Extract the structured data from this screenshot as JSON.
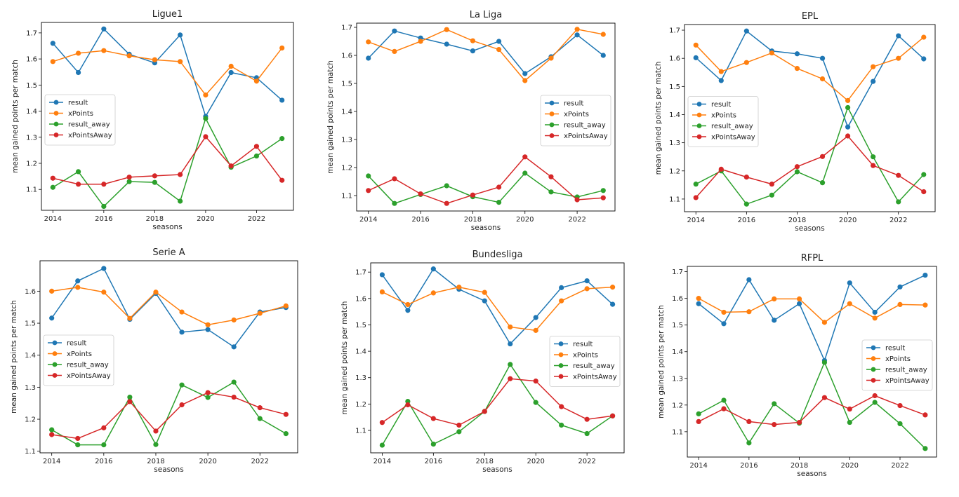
{
  "colors": {
    "result": "#1f77b4",
    "xPoints": "#ff7f0e",
    "result_away": "#2ca02c",
    "xPointsAway": "#d62728"
  },
  "chart_data": [
    {
      "type": "line",
      "title": "Ligue1",
      "xlabel": "seasons",
      "ylabel": "mean gained points per match",
      "x": [
        2014,
        2015,
        2016,
        2017,
        2018,
        2019,
        2020,
        2021,
        2022,
        2023
      ],
      "xticks": [
        2014,
        2016,
        2018,
        2020,
        2022
      ],
      "yticks": [
        1.1,
        1.2,
        1.3,
        1.4,
        1.5,
        1.6,
        1.7
      ],
      "ylim": [
        1.02,
        1.74
      ],
      "legend": "center-left",
      "series": [
        {
          "name": "result",
          "values": [
            1.66,
            1.548,
            1.715,
            1.618,
            1.585,
            1.692,
            1.38,
            1.548,
            1.528,
            1.442
          ]
        },
        {
          "name": "xPoints",
          "values": [
            1.59,
            1.622,
            1.632,
            1.612,
            1.597,
            1.59,
            1.462,
            1.572,
            1.515,
            1.642
          ]
        },
        {
          "name": "result_away",
          "values": [
            1.108,
            1.168,
            1.035,
            1.13,
            1.127,
            1.055,
            1.372,
            1.185,
            1.228,
            1.295
          ]
        },
        {
          "name": "xPointsAway",
          "values": [
            1.143,
            1.12,
            1.12,
            1.147,
            1.152,
            1.157,
            1.302,
            1.19,
            1.265,
            1.135
          ]
        }
      ]
    },
    {
      "type": "line",
      "title": "La Liga",
      "xlabel": "seasons",
      "ylabel": "mean gained points per match",
      "x": [
        2014,
        2015,
        2016,
        2017,
        2018,
        2019,
        2020,
        2021,
        2022,
        2023
      ],
      "xticks": [
        2014,
        2016,
        2018,
        2020,
        2022
      ],
      "yticks": [
        1.1,
        1.2,
        1.3,
        1.4,
        1.5,
        1.6,
        1.7
      ],
      "ylim": [
        1.045,
        1.715
      ],
      "legend": "center-right",
      "series": [
        {
          "name": "result",
          "values": [
            1.59,
            1.687,
            1.662,
            1.64,
            1.616,
            1.65,
            1.535,
            1.595,
            1.673,
            1.6
          ]
        },
        {
          "name": "xPoints",
          "values": [
            1.648,
            1.614,
            1.65,
            1.692,
            1.652,
            1.621,
            1.51,
            1.59,
            1.693,
            1.675
          ]
        },
        {
          "name": "result_away",
          "values": [
            1.17,
            1.072,
            1.104,
            1.135,
            1.096,
            1.076,
            1.18,
            1.113,
            1.095,
            1.118
          ]
        },
        {
          "name": "xPointsAway",
          "values": [
            1.118,
            1.16,
            1.106,
            1.072,
            1.102,
            1.13,
            1.238,
            1.167,
            1.085,
            1.092
          ]
        }
      ]
    },
    {
      "type": "line",
      "title": "EPL",
      "xlabel": "seasons",
      "ylabel": "mean gained points per match",
      "x": [
        2014,
        2015,
        2016,
        2017,
        2018,
        2019,
        2020,
        2021,
        2022,
        2023
      ],
      "xticks": [
        2014,
        2016,
        2018,
        2020,
        2022
      ],
      "yticks": [
        1.1,
        1.2,
        1.3,
        1.4,
        1.5,
        1.6,
        1.7
      ],
      "ylim": [
        1.055,
        1.72
      ],
      "legend": "center-left",
      "series": [
        {
          "name": "result",
          "values": [
            1.602,
            1.521,
            1.697,
            1.626,
            1.616,
            1.6,
            1.356,
            1.518,
            1.68,
            1.598
          ]
        },
        {
          "name": "xPoints",
          "values": [
            1.647,
            1.553,
            1.585,
            1.619,
            1.564,
            1.527,
            1.45,
            1.57,
            1.6,
            1.675
          ]
        },
        {
          "name": "result_away",
          "values": [
            1.153,
            1.2,
            1.082,
            1.114,
            1.197,
            1.158,
            1.425,
            1.25,
            1.09,
            1.187
          ]
        },
        {
          "name": "xPointsAway",
          "values": [
            1.105,
            1.206,
            1.178,
            1.153,
            1.215,
            1.251,
            1.324,
            1.219,
            1.184,
            1.126
          ]
        }
      ]
    },
    {
      "type": "line",
      "title": "Serie A",
      "xlabel": "seasons",
      "ylabel": "mean gained points per match",
      "x": [
        2014,
        2015,
        2016,
        2017,
        2018,
        2019,
        2020,
        2021,
        2022,
        2023
      ],
      "xticks": [
        2014,
        2016,
        2018,
        2020,
        2022
      ],
      "yticks": [
        1.1,
        1.2,
        1.3,
        1.4,
        1.5,
        1.6
      ],
      "ylim": [
        1.095,
        1.695
      ],
      "legend": "center-left",
      "series": [
        {
          "name": "result",
          "values": [
            1.516,
            1.632,
            1.671,
            1.512,
            1.593,
            1.472,
            1.48,
            1.426,
            1.535,
            1.549
          ]
        },
        {
          "name": "xPoints",
          "values": [
            1.6,
            1.612,
            1.597,
            1.515,
            1.597,
            1.535,
            1.495,
            1.51,
            1.531,
            1.554
          ]
        },
        {
          "name": "result_away",
          "values": [
            1.167,
            1.12,
            1.12,
            1.269,
            1.121,
            1.307,
            1.268,
            1.316,
            1.202,
            1.155
          ]
        },
        {
          "name": "xPointsAway",
          "values": [
            1.152,
            1.14,
            1.173,
            1.255,
            1.163,
            1.245,
            1.283,
            1.269,
            1.236,
            1.215
          ]
        }
      ]
    },
    {
      "type": "line",
      "title": "Bundesliga",
      "xlabel": "seasons",
      "ylabel": "mean gained points per match",
      "x": [
        2014,
        2015,
        2016,
        2017,
        2018,
        2019,
        2020,
        2021,
        2022,
        2023
      ],
      "xticks": [
        2014,
        2016,
        2018,
        2020,
        2022
      ],
      "yticks": [
        1.1,
        1.2,
        1.3,
        1.4,
        1.5,
        1.6,
        1.7
      ],
      "ylim": [
        1.015,
        1.735
      ],
      "legend": "center-right",
      "series": [
        {
          "name": "result",
          "values": [
            1.69,
            1.555,
            1.712,
            1.635,
            1.591,
            1.428,
            1.528,
            1.641,
            1.667,
            1.578
          ]
        },
        {
          "name": "xPoints",
          "values": [
            1.625,
            1.577,
            1.621,
            1.643,
            1.623,
            1.492,
            1.479,
            1.591,
            1.637,
            1.643
          ]
        },
        {
          "name": "result_away",
          "values": [
            1.044,
            1.21,
            1.048,
            1.095,
            1.172,
            1.35,
            1.206,
            1.12,
            1.088,
            1.155
          ]
        },
        {
          "name": "xPointsAway",
          "values": [
            1.13,
            1.197,
            1.145,
            1.12,
            1.172,
            1.296,
            1.287,
            1.19,
            1.142,
            1.155
          ]
        }
      ]
    },
    {
      "type": "line",
      "title": "RFPL",
      "xlabel": "seasons",
      "ylabel": "mean gained points per match",
      "x": [
        2014,
        2015,
        2016,
        2017,
        2018,
        2019,
        2020,
        2021,
        2022,
        2023
      ],
      "xticks": [
        2014,
        2016,
        2018,
        2020,
        2022
      ],
      "yticks": [
        1.1,
        1.2,
        1.3,
        1.4,
        1.5,
        1.6,
        1.7
      ],
      "ylim": [
        1.005,
        1.72
      ],
      "legend": "center-right",
      "series": [
        {
          "name": "result",
          "values": [
            1.58,
            1.505,
            1.67,
            1.518,
            1.58,
            1.367,
            1.658,
            1.548,
            1.643,
            1.687
          ]
        },
        {
          "name": "xPoints",
          "values": [
            1.6,
            1.548,
            1.55,
            1.598,
            1.598,
            1.51,
            1.58,
            1.526,
            1.577,
            1.575
          ]
        },
        {
          "name": "result_away",
          "values": [
            1.167,
            1.218,
            1.058,
            1.205,
            1.132,
            1.36,
            1.135,
            1.21,
            1.13,
            1.037
          ]
        },
        {
          "name": "xPointsAway",
          "values": [
            1.138,
            1.186,
            1.138,
            1.127,
            1.135,
            1.228,
            1.185,
            1.235,
            1.198,
            1.163
          ]
        }
      ]
    }
  ]
}
